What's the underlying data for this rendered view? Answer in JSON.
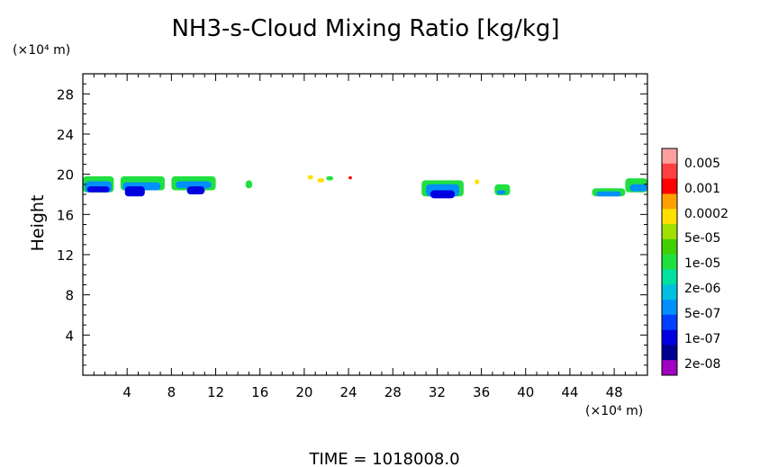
{
  "chart_data": {
    "type": "heatmap",
    "title": "NH3-s-Cloud Mixing Ratio [kg/kg]",
    "ylabel": "Height",
    "y_unit": "(×10⁴ m)",
    "x_unit": "(×10⁴ m)",
    "xlabel": "",
    "xlim": [
      0,
      51
    ],
    "ylim": [
      0,
      30
    ],
    "xticks": [
      4,
      8,
      12,
      16,
      20,
      24,
      28,
      32,
      36,
      40,
      44,
      48
    ],
    "yticks": [
      4,
      8,
      12,
      16,
      20,
      24,
      28
    ],
    "colorbar": {
      "labels": [
        "0.005",
        "0.001",
        "0.0002",
        "5e-05",
        "1e-05",
        "2e-06",
        "5e-07",
        "1e-07",
        "2e-08"
      ],
      "colors": [
        "#ffa0a0",
        "#ff4040",
        "#ff0000",
        "#ffa000",
        "#ffe000",
        "#a0e000",
        "#40d000",
        "#20e040",
        "#00e0a0",
        "#00c0e0",
        "#0090ff",
        "#0040ff",
        "#0000e0",
        "#000090",
        "#a000c0"
      ]
    },
    "regions": [
      {
        "x0": 0.0,
        "x1": 2.8,
        "y0": 18.2,
        "y1": 19.8,
        "level": 7
      },
      {
        "x0": 0.2,
        "x1": 2.6,
        "y0": 18.2,
        "y1": 19.3,
        "level": 10
      },
      {
        "x0": 0.4,
        "x1": 2.4,
        "y0": 18.2,
        "y1": 18.8,
        "level": 12
      },
      {
        "x0": 3.4,
        "x1": 7.4,
        "y0": 18.4,
        "y1": 19.8,
        "level": 7
      },
      {
        "x0": 3.6,
        "x1": 7.0,
        "y0": 18.4,
        "y1": 19.2,
        "level": 10
      },
      {
        "x0": 3.8,
        "x1": 5.6,
        "y0": 17.8,
        "y1": 18.8,
        "level": 12
      },
      {
        "x0": 8.0,
        "x1": 12.0,
        "y0": 18.4,
        "y1": 19.8,
        "level": 7
      },
      {
        "x0": 8.4,
        "x1": 11.6,
        "y0": 18.6,
        "y1": 19.3,
        "level": 10
      },
      {
        "x0": 9.4,
        "x1": 11.0,
        "y0": 18.0,
        "y1": 18.8,
        "level": 12
      },
      {
        "x0": 14.7,
        "x1": 15.3,
        "y0": 18.6,
        "y1": 19.4,
        "level": 7
      },
      {
        "x0": 20.3,
        "x1": 20.8,
        "y0": 19.5,
        "y1": 19.9,
        "level": 4
      },
      {
        "x0": 21.2,
        "x1": 21.8,
        "y0": 19.2,
        "y1": 19.6,
        "level": 4
      },
      {
        "x0": 22.0,
        "x1": 22.6,
        "y0": 19.4,
        "y1": 19.8,
        "level": 7
      },
      {
        "x0": 24.0,
        "x1": 24.3,
        "y0": 19.5,
        "y1": 19.8,
        "level": 2
      },
      {
        "x0": 30.6,
        "x1": 34.4,
        "y0": 17.8,
        "y1": 19.4,
        "level": 7
      },
      {
        "x0": 31.0,
        "x1": 34.0,
        "y0": 17.8,
        "y1": 19.0,
        "level": 10
      },
      {
        "x0": 31.4,
        "x1": 33.6,
        "y0": 17.6,
        "y1": 18.4,
        "level": 12
      },
      {
        "x0": 35.4,
        "x1": 35.8,
        "y0": 19.0,
        "y1": 19.5,
        "level": 4
      },
      {
        "x0": 37.2,
        "x1": 38.6,
        "y0": 17.9,
        "y1": 19.0,
        "level": 7
      },
      {
        "x0": 37.4,
        "x1": 38.2,
        "y0": 18.0,
        "y1": 18.4,
        "level": 10
      },
      {
        "x0": 46.0,
        "x1": 49.0,
        "y0": 17.8,
        "y1": 18.6,
        "level": 7
      },
      {
        "x0": 46.4,
        "x1": 48.6,
        "y0": 17.8,
        "y1": 18.3,
        "level": 10
      },
      {
        "x0": 49.0,
        "x1": 52.0,
        "y0": 18.2,
        "y1": 19.6,
        "level": 7
      },
      {
        "x0": 49.4,
        "x1": 52.0,
        "y0": 18.3,
        "y1": 19.0,
        "level": 10
      }
    ]
  },
  "footer": {
    "time_label": "TIME  =  1018008.0"
  }
}
